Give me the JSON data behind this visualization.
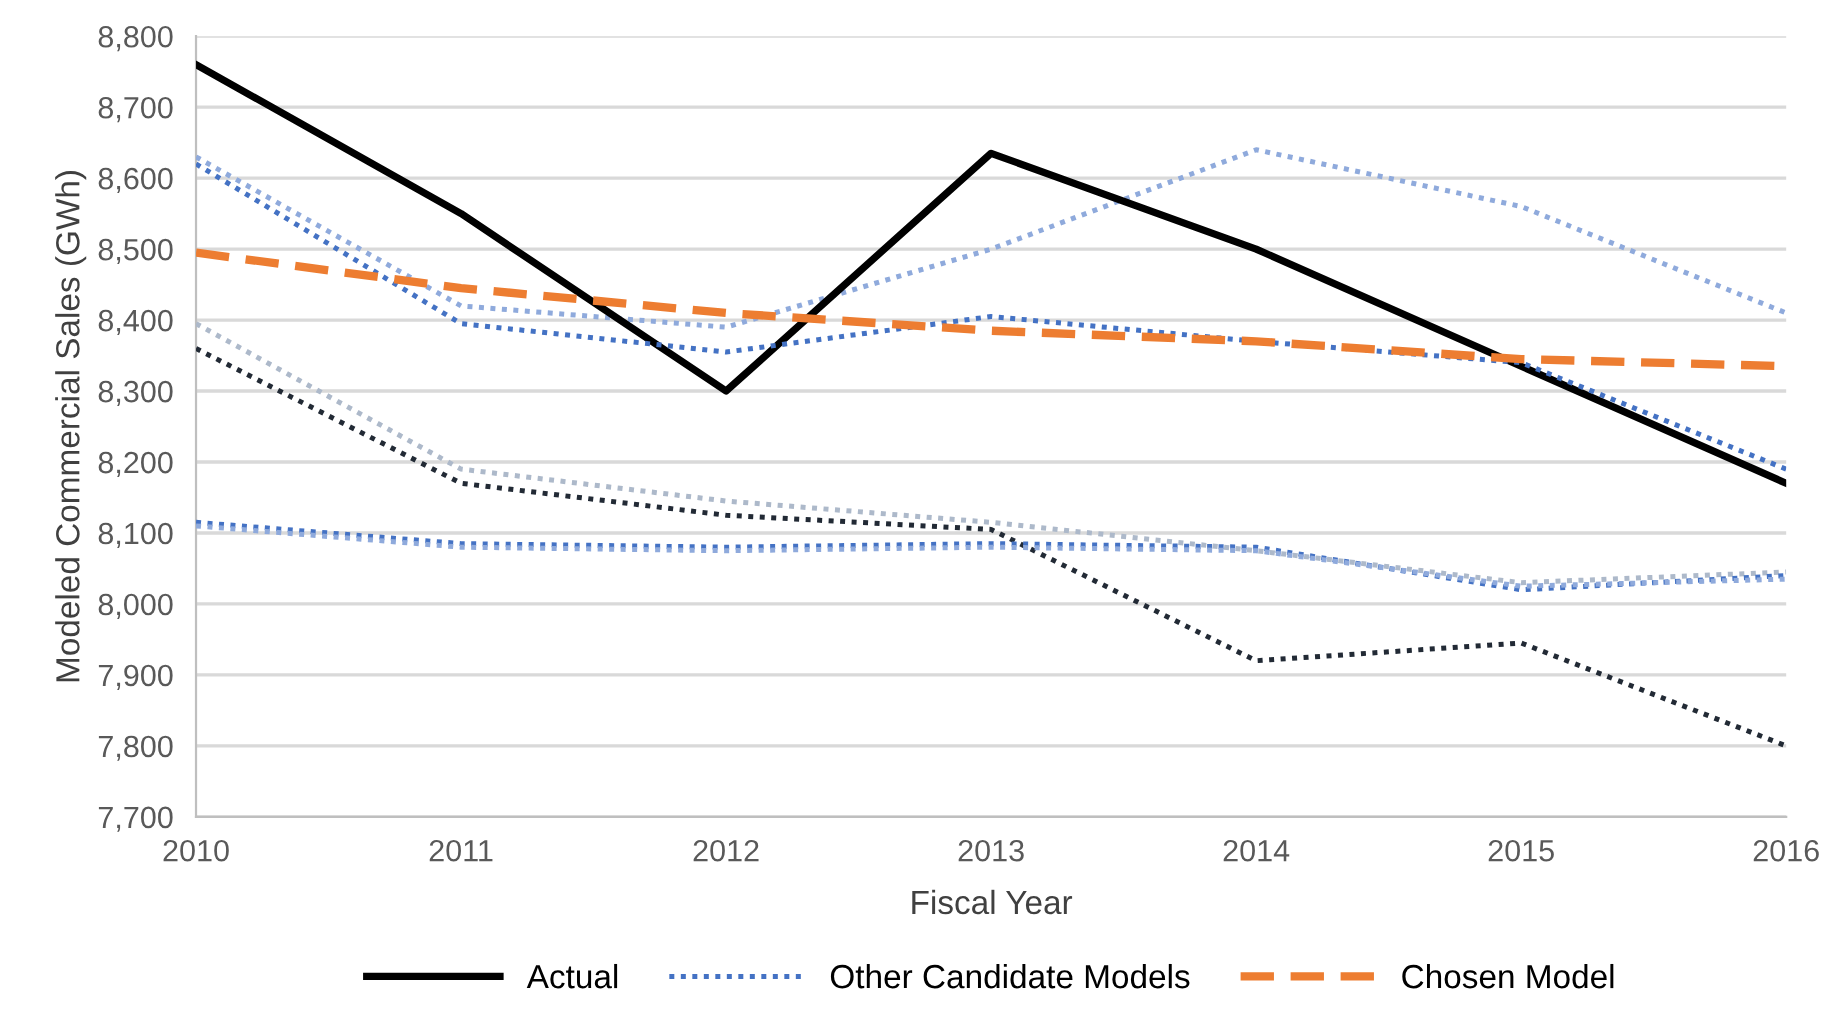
{
  "chart_data": {
    "type": "line",
    "xlabel": "Fiscal Year",
    "ylabel": "Modeled Commercial Sales (GWh)",
    "x": [
      2010,
      2011,
      2012,
      2013,
      2014,
      2015,
      2016
    ],
    "xlim": [
      2010,
      2016
    ],
    "xticks": [
      2010,
      2011,
      2012,
      2013,
      2014,
      2015,
      2016
    ],
    "ylim": [
      7700,
      8800
    ],
    "yticks": [
      {
        "value": 7700,
        "label": "7,700"
      },
      {
        "value": 7800,
        "label": "7,800"
      },
      {
        "value": 7900,
        "label": "7,900"
      },
      {
        "value": 8000,
        "label": "8,000"
      },
      {
        "value": 8100,
        "label": "8,100"
      },
      {
        "value": 8200,
        "label": "8,200"
      },
      {
        "value": 8300,
        "label": "8,300"
      },
      {
        "value": 8400,
        "label": "8,400"
      },
      {
        "value": 8500,
        "label": "8,500"
      },
      {
        "value": 8600,
        "label": "8,600"
      },
      {
        "value": 8700,
        "label": "8,700"
      },
      {
        "value": 8800,
        "label": "8,800"
      }
    ],
    "grid": "y",
    "legend": "bottom",
    "marker": "none",
    "series": [
      {
        "color": "#8faadc",
        "line_style": "dotted",
        "values": [
          8630,
          8420,
          8390,
          8500,
          8640,
          8560,
          8410
        ]
      },
      {
        "color": "#adb9ca",
        "line_style": "dotted",
        "values": [
          8395,
          8190,
          8145,
          8115,
          8075,
          8030,
          8045
        ]
      },
      {
        "color": "#222a35",
        "line_style": "dotted",
        "values": [
          8360,
          8170,
          8125,
          8105,
          7920,
          7945,
          7800
        ]
      },
      {
        "color": "#4472c4",
        "line_style": "dotted",
        "values": [
          8115,
          8085,
          8080,
          8085,
          8080,
          8020,
          8040
        ]
      },
      {
        "color": "#8faadc",
        "line_style": "dotted",
        "values": [
          8110,
          8080,
          8075,
          8080,
          8075,
          8025,
          8035
        ]
      },
      {
        "name": "Actual",
        "color": "#000000",
        "line_style": "solid",
        "values": [
          8760,
          8550,
          8300,
          8635,
          8500,
          8335,
          8170
        ]
      },
      {
        "name": "Other Candidate Models",
        "color": "#4472c4",
        "line_style": "dotted",
        "values": [
          8620,
          8395,
          8355,
          8405,
          8370,
          8340,
          8190
        ]
      },
      {
        "name": "Chosen Model",
        "color": "#ed7d31",
        "line_style": "dashed",
        "values": [
          8495,
          8445,
          8410,
          8385,
          8370,
          8345,
          8335
        ]
      }
    ]
  }
}
